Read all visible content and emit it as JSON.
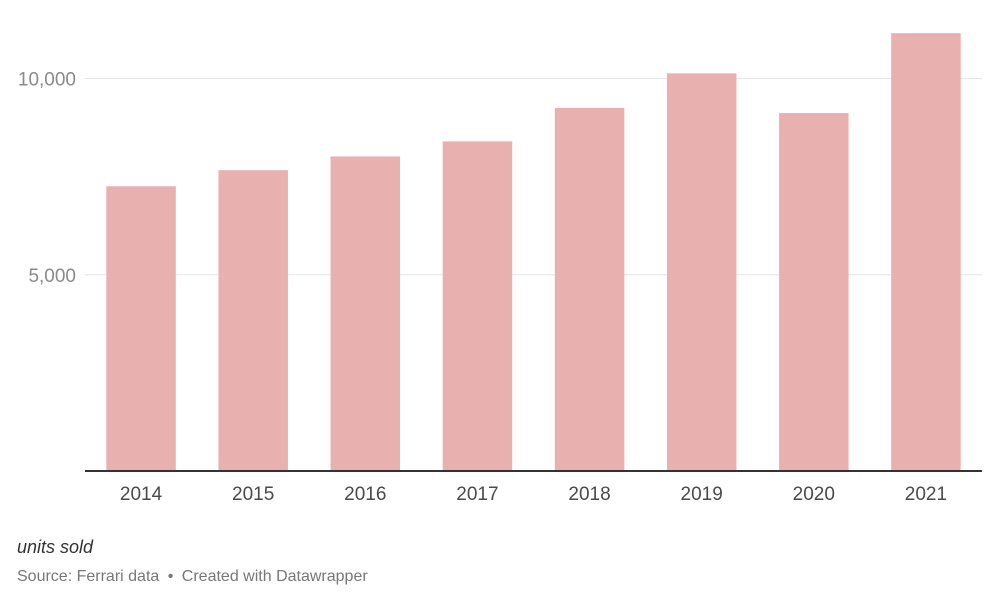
{
  "chart_data": {
    "type": "bar",
    "categories": [
      "2014",
      "2015",
      "2016",
      "2017",
      "2018",
      "2019",
      "2020",
      "2021"
    ],
    "values": [
      7255,
      7664,
      8014,
      8398,
      9251,
      10131,
      9119,
      11155
    ],
    "ylim": [
      0,
      12000
    ],
    "yticks": [
      5000,
      10000
    ],
    "ytick_labels": [
      "5,000",
      "10,000"
    ],
    "grid": true,
    "bar_color": "#e9b0b0",
    "title": "",
    "xlabel": "",
    "ylabel": ""
  },
  "notes": "units sold",
  "source": {
    "label": "Source: Ferrari data",
    "separator": "•",
    "credit": "Created with Datawrapper"
  }
}
